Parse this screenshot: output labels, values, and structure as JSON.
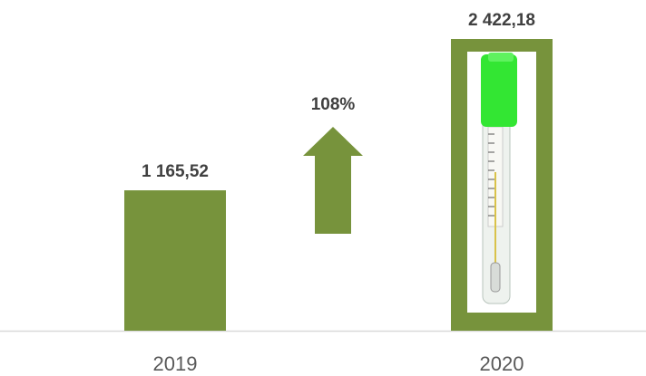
{
  "chart_data": {
    "type": "bar",
    "categories": [
      "2019",
      "2020"
    ],
    "values": [
      1165.52,
      2422.18
    ],
    "value_labels": [
      "1 165,52",
      "2 422,18"
    ],
    "color": "#77933c",
    "annotation": "108%"
  }
}
